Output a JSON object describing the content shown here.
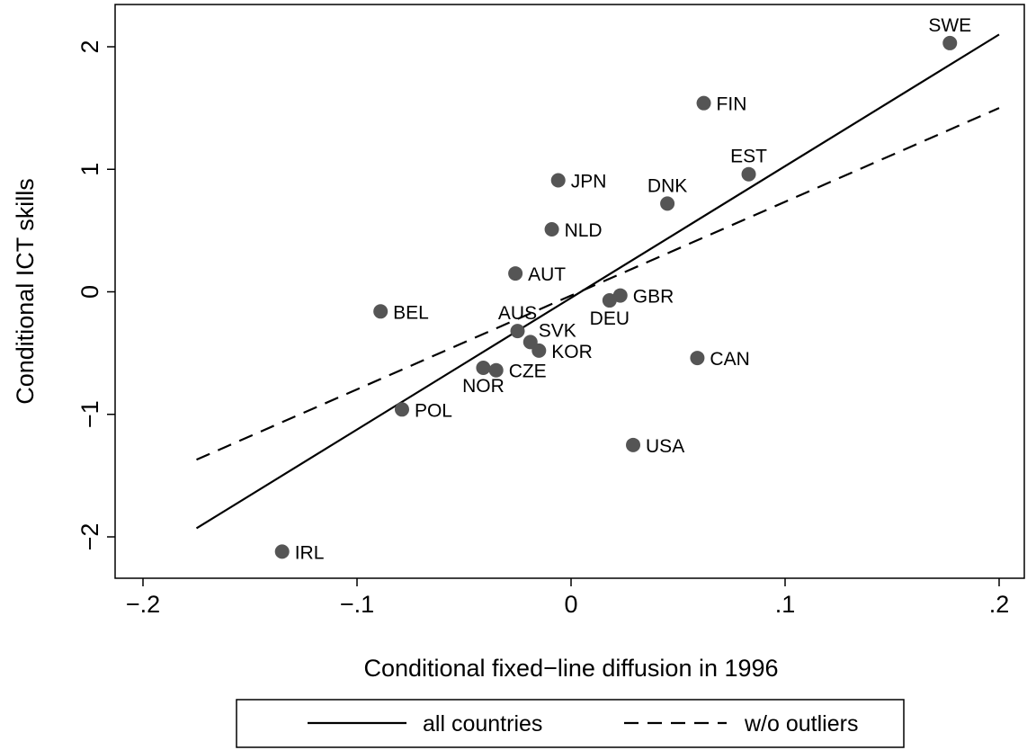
{
  "chart_data": {
    "type": "scatter",
    "xlabel": "Conditional fixed−line diffusion in 1996",
    "ylabel": "Conditional ICT skills",
    "xlim": [
      -0.2,
      0.2
    ],
    "ylim": [
      -2,
      2
    ],
    "x_ticks": [
      {
        "value": -0.2,
        "label": "−.2"
      },
      {
        "value": -0.1,
        "label": "−.1"
      },
      {
        "value": 0,
        "label": "0"
      },
      {
        "value": 0.1,
        "label": ".1"
      },
      {
        "value": 0.2,
        "label": ".2"
      }
    ],
    "y_ticks": [
      {
        "value": -2,
        "label": "−2"
      },
      {
        "value": -1,
        "label": "−1"
      },
      {
        "value": 0,
        "label": "0"
      },
      {
        "value": 1,
        "label": "1"
      },
      {
        "value": 2,
        "label": "2"
      }
    ],
    "points": [
      {
        "label": "SWE",
        "x": 0.177,
        "y": 2.03,
        "pos": "above"
      },
      {
        "label": "FIN",
        "x": 0.062,
        "y": 1.54,
        "pos": "right"
      },
      {
        "label": "EST",
        "x": 0.083,
        "y": 0.96,
        "pos": "above"
      },
      {
        "label": "JPN",
        "x": -0.006,
        "y": 0.91,
        "pos": "right"
      },
      {
        "label": "DNK",
        "x": 0.045,
        "y": 0.72,
        "pos": "above"
      },
      {
        "label": "NLD",
        "x": -0.009,
        "y": 0.51,
        "pos": "right"
      },
      {
        "label": "AUT",
        "x": -0.026,
        "y": 0.15,
        "pos": "right"
      },
      {
        "label": "GBR",
        "x": 0.023,
        "y": -0.03,
        "pos": "right"
      },
      {
        "label": "DEU",
        "x": 0.018,
        "y": -0.07,
        "pos": "below"
      },
      {
        "label": "BEL",
        "x": -0.089,
        "y": -0.16,
        "pos": "right"
      },
      {
        "label": "AUS",
        "x": -0.025,
        "y": -0.32,
        "pos": "above"
      },
      {
        "label": "SVK",
        "x": -0.019,
        "y": -0.41,
        "pos": "above-right"
      },
      {
        "label": "KOR",
        "x": -0.015,
        "y": -0.48,
        "pos": "right"
      },
      {
        "label": "CAN",
        "x": 0.059,
        "y": -0.54,
        "pos": "right"
      },
      {
        "label": "NOR",
        "x": -0.041,
        "y": -0.62,
        "pos": "below"
      },
      {
        "label": "CZE",
        "x": -0.035,
        "y": -0.64,
        "pos": "right"
      },
      {
        "label": "POL",
        "x": -0.079,
        "y": -0.96,
        "pos": "right"
      },
      {
        "label": "USA",
        "x": 0.029,
        "y": -1.25,
        "pos": "right"
      },
      {
        "label": "IRL",
        "x": -0.135,
        "y": -2.12,
        "pos": "right"
      }
    ],
    "series": [
      {
        "name": "all countries",
        "type": "line",
        "style": "solid",
        "x": [
          -0.175,
          0.2
        ],
        "y": [
          -1.93,
          2.1
        ]
      },
      {
        "name": "w/o outliers",
        "type": "line",
        "style": "dashed",
        "x": [
          -0.175,
          0.2
        ],
        "y": [
          -1.37,
          1.5
        ]
      }
    ],
    "legend": {
      "position": "bottom",
      "entries": [
        "all countries",
        "w/o outliers"
      ]
    },
    "grid": false,
    "colors": {
      "marker": "#555555",
      "line": "#000000"
    }
  }
}
